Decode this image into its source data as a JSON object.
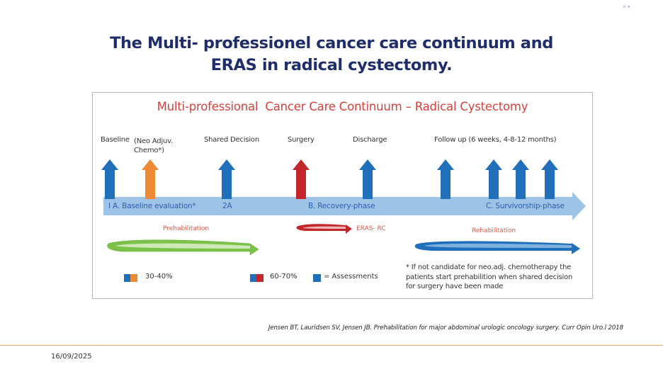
{
  "slide": {
    "title_line1": "The Multi- professionel cancer care continuum and",
    "title_line2": "ERAS in radical cystectomy.",
    "corner_mark": "Ⓐ ≡",
    "citation": "Jensen BT, Lauridsen SV, Jensen JB. Prehabilitation for major abdominal  urologic oncology surgery. Curr Opin Uro.l 2018",
    "date": "16/09/2025"
  },
  "figure": {
    "title": "Multi-professional  Cancer Care Continuum – Radical Cystectomy",
    "timepoints": {
      "baseline": "Baseline",
      "neo_adjuv_line1": "(Neo Adjuv.",
      "neo_adjuv_line2": "Chemo*)",
      "shared_decision": "Shared Decision",
      "surgery": "Surgery",
      "discharge": "Discharge",
      "follow_up": "Follow up (6 weeks, 4-8-12 months)"
    },
    "phases": {
      "baseline_eval": "I A. Baseline evaluation*",
      "phase_2a": "2A",
      "recovery": "B. Recovery-phase",
      "survivorship": "C. Survivorship-phase"
    },
    "programs": {
      "prehabilitation": "Prehabilitation",
      "eras": "ERAS- RC",
      "rehabilitation": "Rehabilitation"
    },
    "legend": {
      "pct_orange": "30-40%",
      "pct_red": "60-70%",
      "assessments": "= Assessments"
    },
    "note": "* If not candidate for neo.adj. chemotherapy the patients start prehabilition when shared decision for surgery have been made",
    "colors": {
      "blue": "#1f6fba",
      "orange": "#ee8a34",
      "red": "#c3262b",
      "green": "#7cc24a",
      "timeline": "#9dc3e6",
      "title_red": "#d9403c"
    }
  }
}
